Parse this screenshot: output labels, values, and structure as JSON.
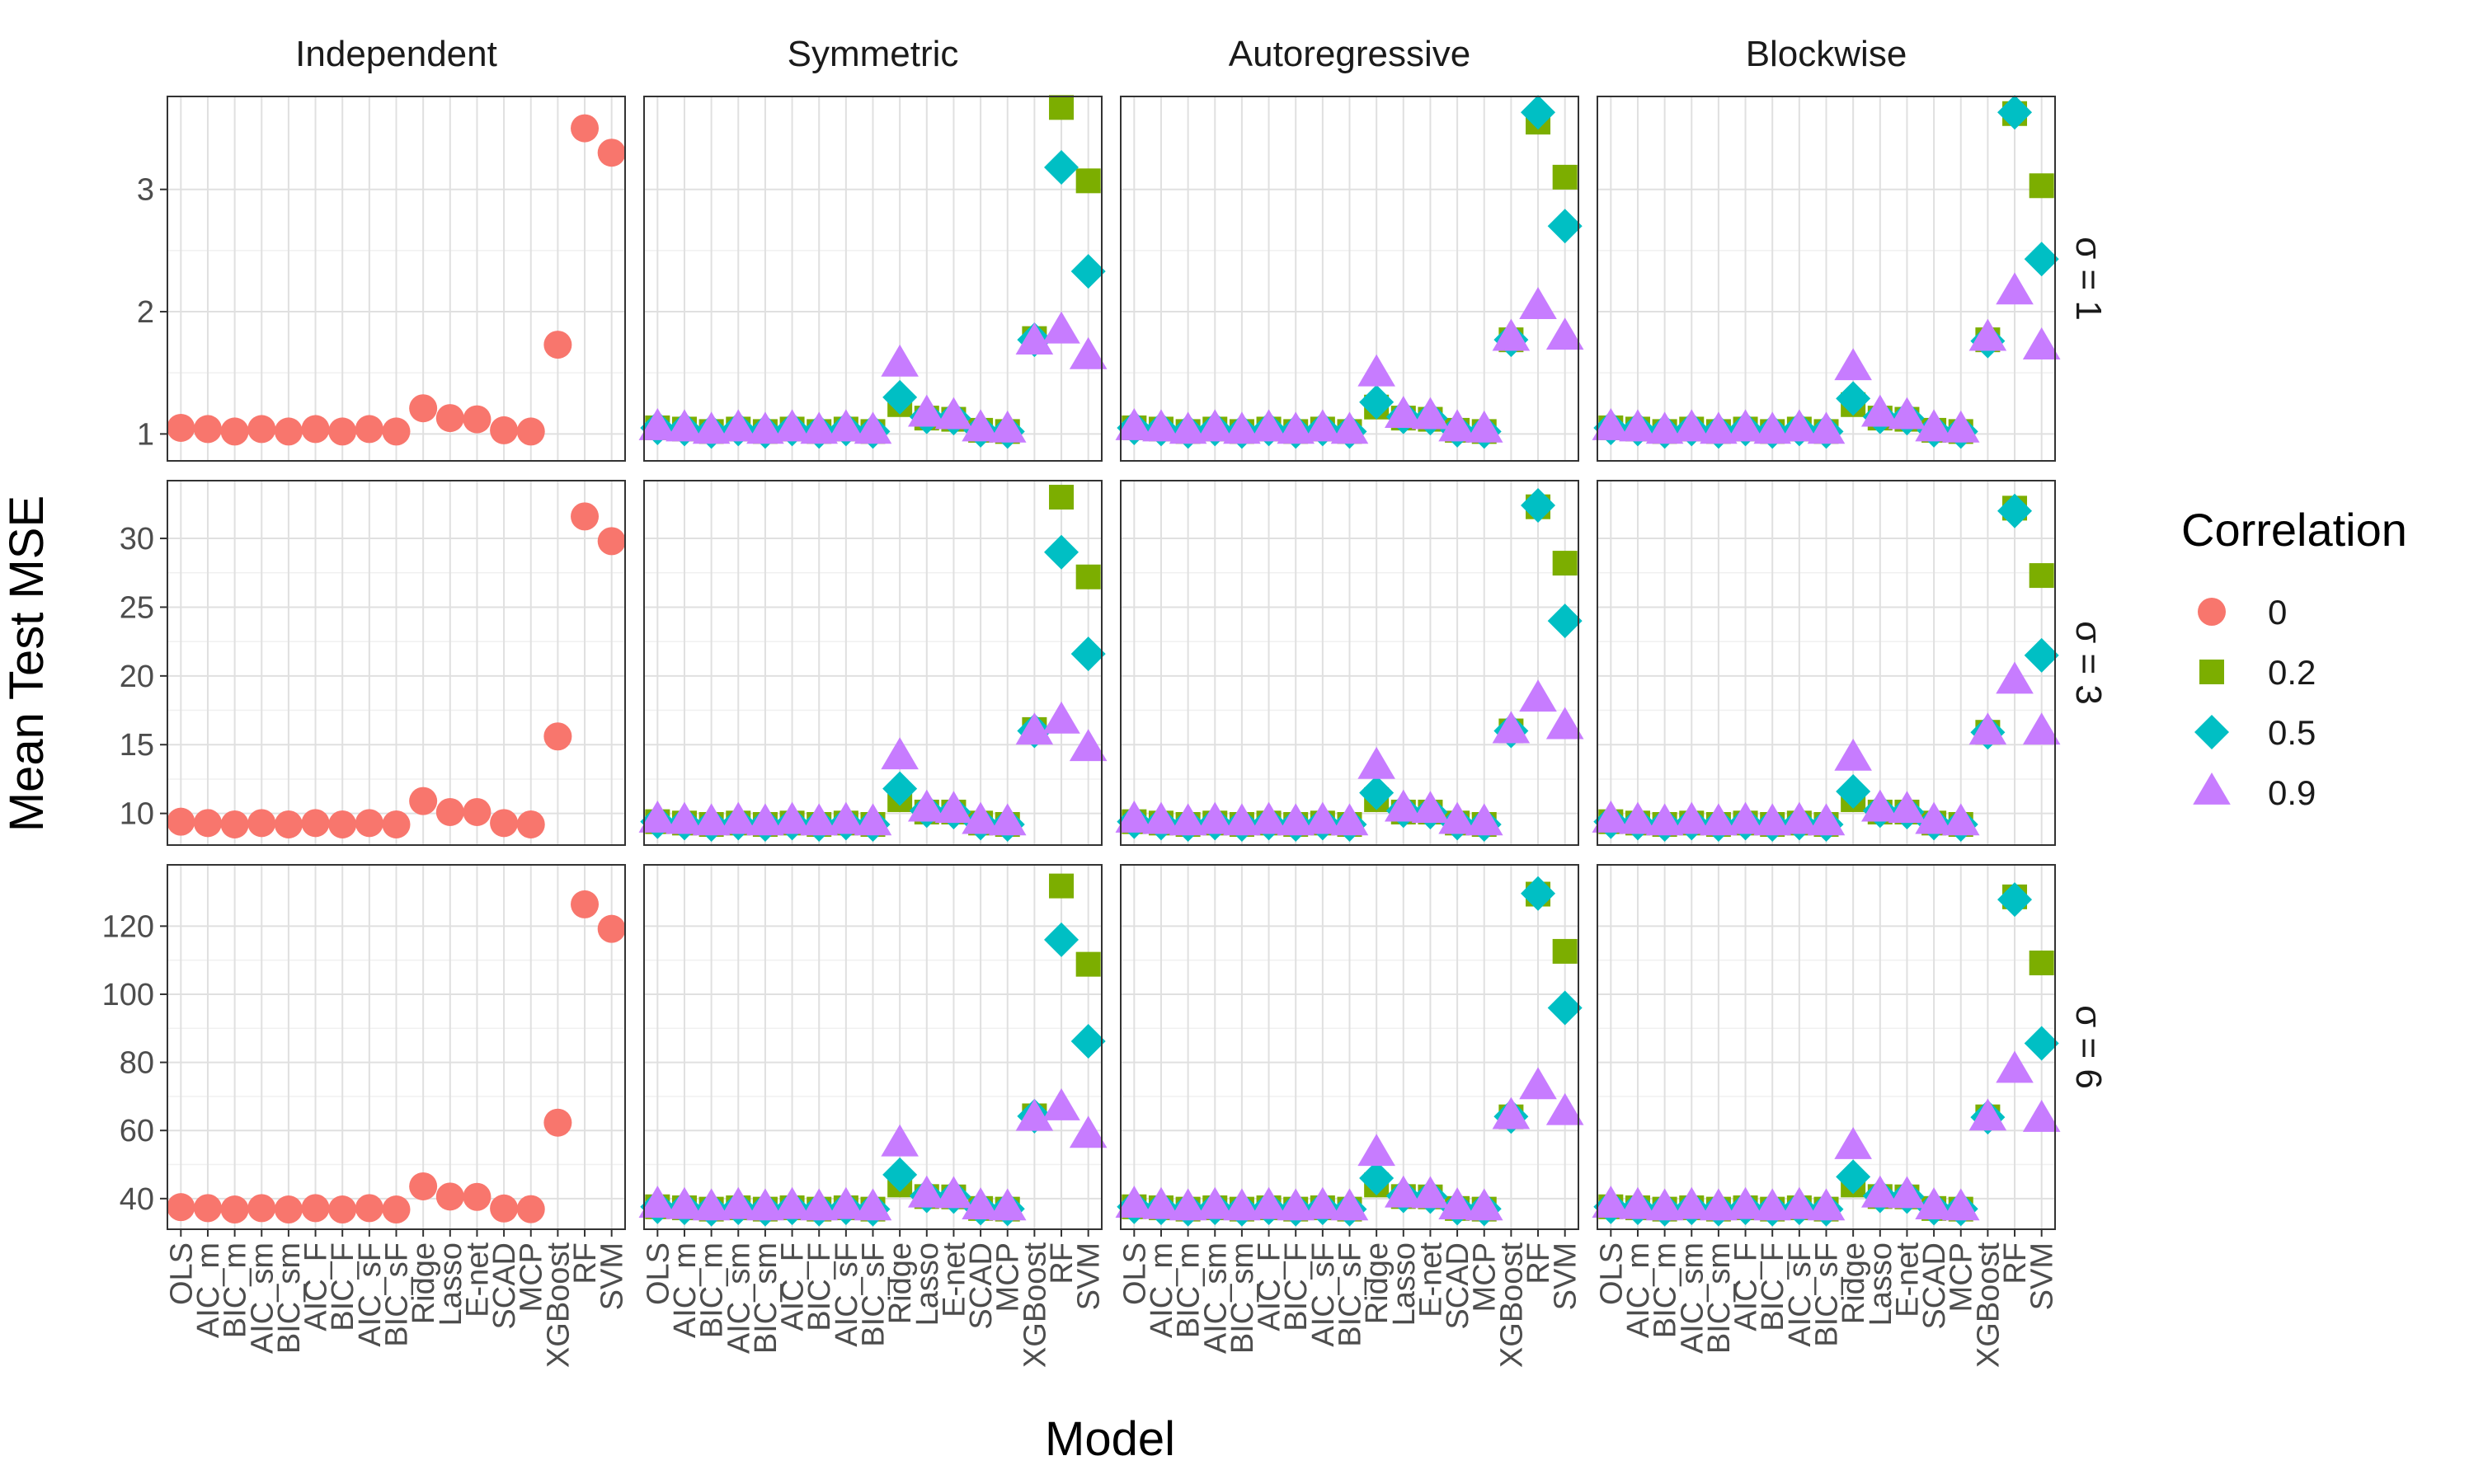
{
  "chart_data": {
    "type": "scatter",
    "facet_columns": [
      "Independent",
      "Symmetric",
      "Autoregressive",
      "Blockwise"
    ],
    "facet_rows": [
      "σ = 1",
      "σ = 3",
      "σ = 6"
    ],
    "categories": [
      "OLS",
      "AIC_m",
      "BIC_m",
      "AIC_sm",
      "BIC_sm",
      "AIC_F",
      "BIC_F",
      "AIC_sF",
      "BIC_sF",
      "Ridge",
      "Lasso",
      "E-net",
      "SCAD",
      "MCP",
      "XGBoost",
      "RF",
      "SVM"
    ],
    "xlabel": "Model",
    "ylabel": "Mean Test MSE",
    "legend": {
      "title": "Correlation",
      "position": "right",
      "entries": [
        {
          "label": "0",
          "shape": "circle",
          "color": "#F8766D"
        },
        {
          "label": "0.2",
          "shape": "square",
          "color": "#7CAE00"
        },
        {
          "label": "0.5",
          "shape": "diamond",
          "color": "#00BFC4"
        },
        {
          "label": "0.9",
          "shape": "triangle",
          "color": "#C77CFF"
        }
      ]
    },
    "rows": [
      {
        "label": "σ = 1",
        "ylim": [
          0.78,
          3.76
        ],
        "yticks": [
          1,
          2,
          3
        ],
        "panels": [
          {
            "column": "Independent",
            "series": [
              {
                "name": "0",
                "values": [
                  1.05,
                  1.04,
                  1.02,
                  1.04,
                  1.02,
                  1.04,
                  1.02,
                  1.04,
                  1.02,
                  1.21,
                  1.13,
                  1.12,
                  1.03,
                  1.02,
                  1.73,
                  3.5,
                  3.3
                ]
              }
            ]
          },
          {
            "column": "Symmetric",
            "series": [
              {
                "name": "0.2",
                "values": [
                  1.05,
                  1.04,
                  1.02,
                  1.04,
                  1.02,
                  1.04,
                  1.02,
                  1.04,
                  1.02,
                  1.24,
                  1.13,
                  1.12,
                  1.03,
                  1.02,
                  1.78,
                  3.67,
                  3.07
                ]
              },
              {
                "name": "0.5",
                "values": [
                  1.05,
                  1.04,
                  1.02,
                  1.04,
                  1.02,
                  1.04,
                  1.02,
                  1.04,
                  1.02,
                  1.3,
                  1.14,
                  1.13,
                  1.03,
                  1.02,
                  1.77,
                  3.18,
                  2.33
                ]
              },
              {
                "name": "0.9",
                "values": [
                  1.05,
                  1.04,
                  1.02,
                  1.04,
                  1.02,
                  1.04,
                  1.02,
                  1.04,
                  1.02,
                  1.57,
                  1.16,
                  1.14,
                  1.04,
                  1.03,
                  1.75,
                  1.84,
                  1.63
                ]
              }
            ]
          },
          {
            "column": "Autoregressive",
            "series": [
              {
                "name": "0.2",
                "values": [
                  1.05,
                  1.04,
                  1.02,
                  1.04,
                  1.02,
                  1.04,
                  1.02,
                  1.04,
                  1.02,
                  1.22,
                  1.13,
                  1.12,
                  1.03,
                  1.02,
                  1.77,
                  3.55,
                  3.1
                ]
              },
              {
                "name": "0.5",
                "values": [
                  1.05,
                  1.04,
                  1.02,
                  1.04,
                  1.02,
                  1.04,
                  1.02,
                  1.04,
                  1.02,
                  1.26,
                  1.14,
                  1.13,
                  1.03,
                  1.02,
                  1.77,
                  3.63,
                  2.7
                ]
              },
              {
                "name": "0.9",
                "values": [
                  1.05,
                  1.04,
                  1.02,
                  1.04,
                  1.02,
                  1.04,
                  1.02,
                  1.04,
                  1.02,
                  1.49,
                  1.15,
                  1.14,
                  1.04,
                  1.03,
                  1.78,
                  2.04,
                  1.79
                ]
              }
            ]
          },
          {
            "column": "Blockwise",
            "series": [
              {
                "name": "0.2",
                "values": [
                  1.05,
                  1.04,
                  1.02,
                  1.04,
                  1.02,
                  1.04,
                  1.02,
                  1.04,
                  1.02,
                  1.24,
                  1.13,
                  1.12,
                  1.03,
                  1.02,
                  1.77,
                  3.62,
                  3.03
                ]
              },
              {
                "name": "0.5",
                "values": [
                  1.05,
                  1.04,
                  1.02,
                  1.04,
                  1.02,
                  1.04,
                  1.02,
                  1.04,
                  1.02,
                  1.29,
                  1.14,
                  1.13,
                  1.03,
                  1.02,
                  1.76,
                  3.63,
                  2.43
                ]
              },
              {
                "name": "0.9",
                "values": [
                  1.05,
                  1.04,
                  1.02,
                  1.04,
                  1.02,
                  1.04,
                  1.02,
                  1.04,
                  1.02,
                  1.54,
                  1.16,
                  1.14,
                  1.04,
                  1.03,
                  1.78,
                  2.16,
                  1.71
                ]
              }
            ]
          }
        ]
      },
      {
        "label": "σ = 3",
        "ylim": [
          7.7,
          34.2
        ],
        "yticks": [
          10,
          15,
          20,
          25,
          30
        ],
        "panels": [
          {
            "column": "Independent",
            "series": [
              {
                "name": "0",
                "values": [
                  9.4,
                  9.3,
                  9.2,
                  9.3,
                  9.2,
                  9.3,
                  9.2,
                  9.3,
                  9.2,
                  10.9,
                  10.1,
                  10.1,
                  9.3,
                  9.2,
                  15.6,
                  31.6,
                  29.8
                ]
              }
            ]
          },
          {
            "column": "Symmetric",
            "series": [
              {
                "name": "0.2",
                "values": [
                  9.4,
                  9.3,
                  9.2,
                  9.3,
                  9.2,
                  9.3,
                  9.2,
                  9.3,
                  9.2,
                  11.0,
                  10.1,
                  10.1,
                  9.3,
                  9.2,
                  16.1,
                  33.0,
                  27.2
                ]
              },
              {
                "name": "0.5",
                "values": [
                  9.4,
                  9.3,
                  9.2,
                  9.3,
                  9.2,
                  9.3,
                  9.2,
                  9.3,
                  9.2,
                  11.8,
                  10.2,
                  10.1,
                  9.3,
                  9.2,
                  16.0,
                  29.0,
                  21.6
                ]
              },
              {
                "name": "0.9",
                "values": [
                  9.5,
                  9.4,
                  9.3,
                  9.4,
                  9.3,
                  9.4,
                  9.3,
                  9.4,
                  9.3,
                  14.1,
                  10.3,
                  10.2,
                  9.4,
                  9.3,
                  15.9,
                  16.7,
                  14.7
                ]
              }
            ]
          },
          {
            "column": "Autoregressive",
            "series": [
              {
                "name": "0.2",
                "values": [
                  9.4,
                  9.3,
                  9.2,
                  9.3,
                  9.2,
                  9.3,
                  9.2,
                  9.3,
                  9.2,
                  11.0,
                  10.1,
                  10.1,
                  9.3,
                  9.2,
                  16.0,
                  32.3,
                  28.2
                ]
              },
              {
                "name": "0.5",
                "values": [
                  9.4,
                  9.3,
                  9.2,
                  9.3,
                  9.2,
                  9.3,
                  9.2,
                  9.3,
                  9.2,
                  11.5,
                  10.2,
                  10.1,
                  9.3,
                  9.2,
                  16.0,
                  32.4,
                  24.0
                ]
              },
              {
                "name": "0.9",
                "values": [
                  9.5,
                  9.4,
                  9.3,
                  9.4,
                  9.3,
                  9.4,
                  9.3,
                  9.4,
                  9.3,
                  13.4,
                  10.3,
                  10.2,
                  9.4,
                  9.3,
                  16.0,
                  18.3,
                  16.3
                ]
              }
            ]
          },
          {
            "column": "Blockwise",
            "series": [
              {
                "name": "0.2",
                "values": [
                  9.4,
                  9.3,
                  9.2,
                  9.3,
                  9.2,
                  9.3,
                  9.2,
                  9.3,
                  9.2,
                  11.0,
                  10.1,
                  10.1,
                  9.3,
                  9.2,
                  15.9,
                  32.2,
                  27.3
                ]
              },
              {
                "name": "0.5",
                "values": [
                  9.4,
                  9.3,
                  9.2,
                  9.3,
                  9.2,
                  9.3,
                  9.2,
                  9.3,
                  9.2,
                  11.6,
                  10.2,
                  10.1,
                  9.3,
                  9.2,
                  15.9,
                  32.0,
                  21.5
                ]
              },
              {
                "name": "0.9",
                "values": [
                  9.5,
                  9.4,
                  9.3,
                  9.4,
                  9.3,
                  9.4,
                  9.3,
                  9.4,
                  9.3,
                  14.0,
                  10.3,
                  10.2,
                  9.4,
                  9.3,
                  15.9,
                  19.6,
                  15.9
                ]
              }
            ]
          }
        ]
      },
      {
        "label": "σ = 6",
        "ylim": [
          31,
          138
        ],
        "yticks": [
          40,
          60,
          80,
          100,
          120
        ],
        "panels": [
          {
            "column": "Independent",
            "series": [
              {
                "name": "0",
                "values": [
                  37.5,
                  37.2,
                  36.8,
                  37.2,
                  36.8,
                  37.2,
                  36.8,
                  37.2,
                  36.8,
                  43.6,
                  40.6,
                  40.5,
                  37.1,
                  36.9,
                  62.3,
                  126.4,
                  119.2
                ]
              }
            ]
          },
          {
            "column": "Symmetric",
            "series": [
              {
                "name": "0.2",
                "values": [
                  37.6,
                  37.3,
                  36.9,
                  37.3,
                  36.9,
                  37.3,
                  36.9,
                  37.3,
                  36.9,
                  44.0,
                  40.6,
                  40.5,
                  37.1,
                  36.9,
                  64.3,
                  131.8,
                  108.8
                ]
              },
              {
                "name": "0.5",
                "values": [
                  37.6,
                  37.3,
                  36.9,
                  37.3,
                  36.9,
                  37.3,
                  36.9,
                  37.3,
                  36.9,
                  47.0,
                  40.8,
                  40.6,
                  37.2,
                  37.0,
                  64.2,
                  116.0,
                  86.2
                ]
              },
              {
                "name": "0.9",
                "values": [
                  38.0,
                  37.6,
                  37.2,
                  37.6,
                  37.2,
                  37.6,
                  37.2,
                  37.6,
                  37.2,
                  56.0,
                  41.0,
                  40.8,
                  37.5,
                  37.2,
                  63.5,
                  66.6,
                  58.5
                ]
              }
            ]
          },
          {
            "column": "Autoregressive",
            "series": [
              {
                "name": "0.2",
                "values": [
                  37.6,
                  37.3,
                  36.9,
                  37.3,
                  36.9,
                  37.3,
                  36.9,
                  37.3,
                  36.9,
                  44.0,
                  40.6,
                  40.5,
                  37.1,
                  36.9,
                  64.0,
                  129.4,
                  112.6
                ]
              },
              {
                "name": "0.5",
                "values": [
                  37.6,
                  37.3,
                  36.9,
                  37.3,
                  36.9,
                  37.3,
                  36.9,
                  37.3,
                  36.9,
                  46.0,
                  40.8,
                  40.6,
                  37.2,
                  37.0,
                  64.1,
                  129.6,
                  96.0
                ]
              },
              {
                "name": "0.9",
                "values": [
                  38.0,
                  37.6,
                  37.2,
                  37.6,
                  37.2,
                  37.6,
                  37.2,
                  37.6,
                  37.2,
                  53.2,
                  41.0,
                  40.8,
                  37.5,
                  37.2,
                  64.0,
                  72.8,
                  65.2
                ]
              }
            ]
          },
          {
            "column": "Blockwise",
            "series": [
              {
                "name": "0.2",
                "values": [
                  37.6,
                  37.3,
                  36.9,
                  37.3,
                  36.9,
                  37.3,
                  36.9,
                  37.3,
                  36.9,
                  44.0,
                  40.6,
                  40.5,
                  37.1,
                  36.9,
                  64.0,
                  128.6,
                  109.2
                ]
              },
              {
                "name": "0.5",
                "values": [
                  37.6,
                  37.3,
                  36.9,
                  37.3,
                  36.9,
                  37.3,
                  36.9,
                  37.3,
                  36.9,
                  46.4,
                  40.8,
                  40.6,
                  37.2,
                  37.0,
                  63.9,
                  127.8,
                  85.6
                ]
              },
              {
                "name": "0.9",
                "values": [
                  38.0,
                  37.6,
                  37.2,
                  37.6,
                  37.2,
                  37.6,
                  37.2,
                  37.6,
                  37.2,
                  55.2,
                  41.0,
                  40.8,
                  37.5,
                  37.2,
                  63.6,
                  77.6,
                  63.2
                ]
              }
            ]
          }
        ]
      }
    ]
  }
}
